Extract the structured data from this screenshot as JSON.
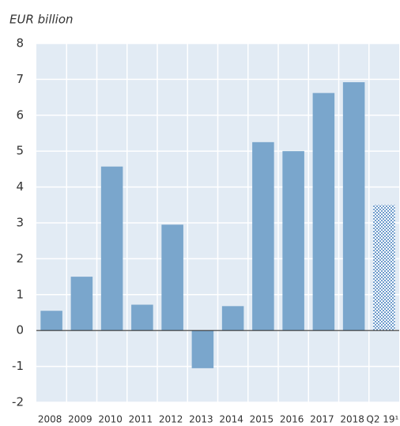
{
  "chart_data": {
    "type": "bar",
    "y_axis_label": "EUR billion",
    "categories": [
      "2008",
      "2009",
      "2010",
      "2011",
      "2012",
      "2013",
      "2014",
      "2015",
      "2016",
      "2017",
      "2018",
      "Q2 19¹"
    ],
    "values": [
      0.55,
      1.5,
      4.57,
      0.72,
      2.95,
      -1.05,
      0.68,
      5.25,
      5.0,
      6.62,
      6.92,
      3.5
    ],
    "hatched": [
      false,
      false,
      false,
      false,
      false,
      false,
      false,
      false,
      false,
      false,
      false,
      true
    ],
    "color": "#7aa6cc",
    "ylim": [
      -2,
      8
    ],
    "yticks": [
      -2,
      -1,
      0,
      1,
      2,
      3,
      4,
      5,
      6,
      7,
      8
    ],
    "grid": true
  }
}
